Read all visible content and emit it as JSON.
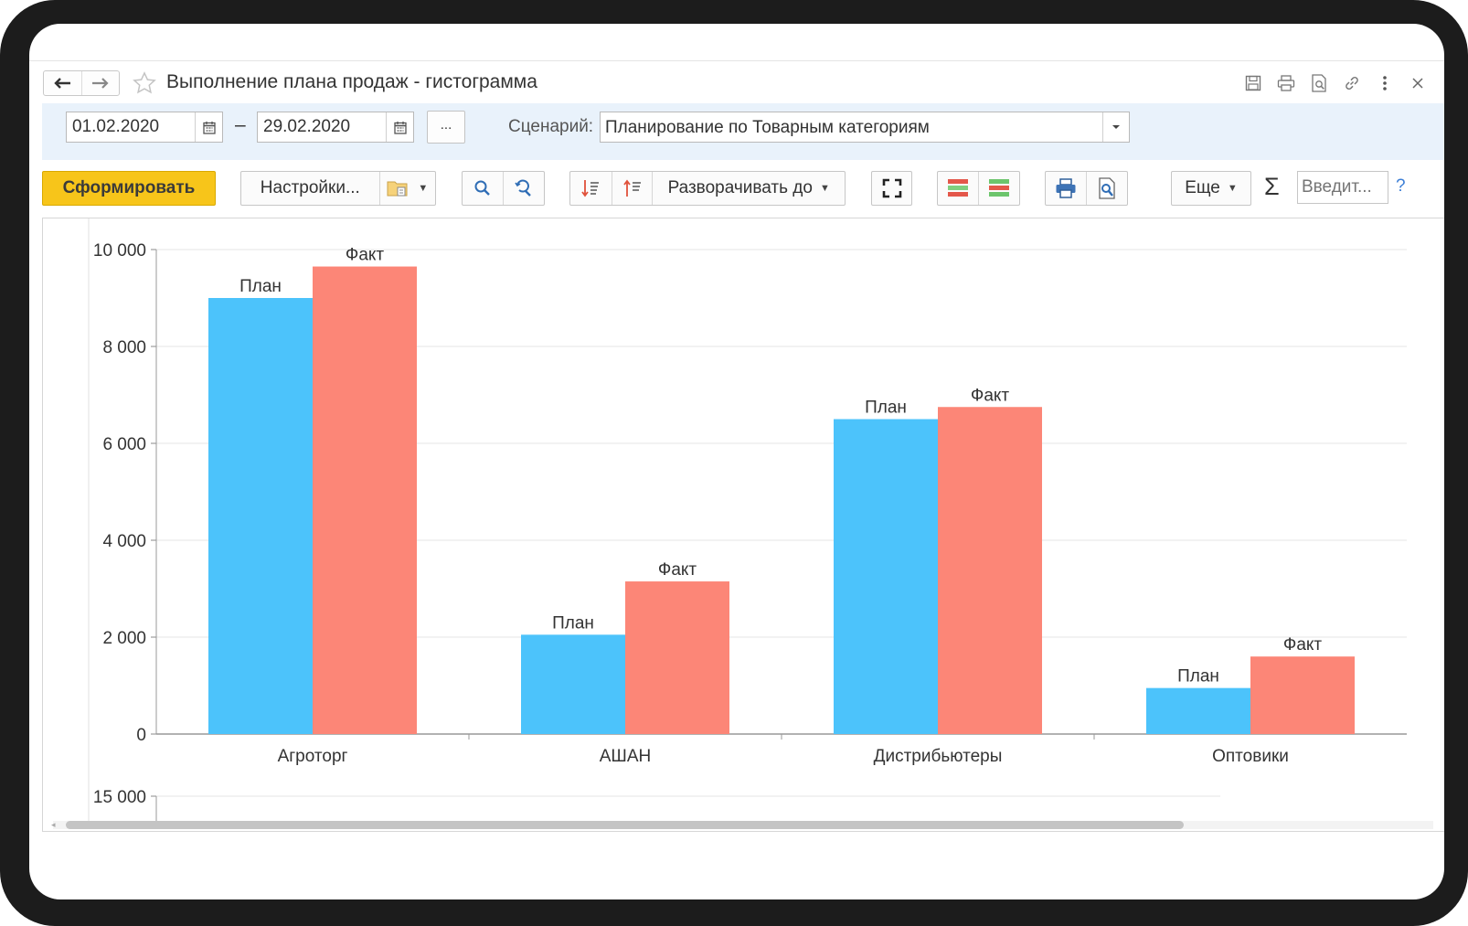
{
  "window": {
    "title": "Выполнение плана продаж - гистограмма",
    "icons": [
      "save-icon",
      "print-icon",
      "preview-icon",
      "link-icon",
      "more-vertical-icon",
      "close-icon"
    ]
  },
  "period": {
    "start": "01.02.2020",
    "separator": "–",
    "end": "29.02.2020",
    "more_label": "...",
    "scenario_label": "Сценарий:",
    "scenario_value": "Планирование по Товарным категориям"
  },
  "toolbar": {
    "generate_label": "Сформировать",
    "settings_label": "Настройки...",
    "expand_label": "Разворачивать до",
    "more_label": "Еще",
    "sigma_label": "Σ",
    "search_placeholder": "Введит...",
    "help_label": "?"
  },
  "colors": {
    "plan": "#4cc3fb",
    "fact": "#fc8677",
    "primary_button": "#f7c51a",
    "period_bar": "#e9f2fb"
  },
  "chart_data": {
    "type": "bar",
    "categories": [
      "Агроторг",
      "АШАН",
      "Дистрибьютеры",
      "Оптовики"
    ],
    "series": [
      {
        "name": "План",
        "values": [
          9000,
          2050,
          6500,
          950
        ]
      },
      {
        "name": "Факт",
        "values": [
          9650,
          3150,
          6750,
          1600
        ]
      }
    ],
    "ylim": [
      0,
      10000
    ],
    "yticks": [
      "0",
      "2 000",
      "4 000",
      "6 000",
      "8 000",
      "10 000"
    ],
    "second_axis_tick": "15 000",
    "grid": true,
    "legend": "none"
  }
}
